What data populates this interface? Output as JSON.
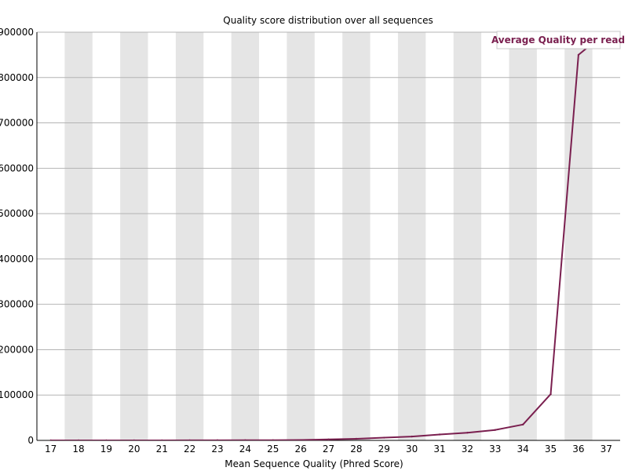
{
  "chart_data": {
    "type": "line",
    "title": "Quality score distribution over all sequences",
    "xlabel": "Mean Sequence Quality (Phred Score)",
    "ylabel": "",
    "x": [
      17,
      18,
      19,
      20,
      21,
      22,
      23,
      24,
      25,
      26,
      27,
      28,
      29,
      30,
      31,
      32,
      33,
      34,
      35,
      36,
      37
    ],
    "xlim": [
      17,
      37
    ],
    "ylim": [
      0,
      900000
    ],
    "yticks": [
      0,
      100000,
      200000,
      300000,
      400000,
      500000,
      600000,
      700000,
      800000,
      900000
    ],
    "grid": true,
    "band_color": "#e5e5e5",
    "legend_position": "top-right",
    "series": [
      {
        "name": "Average Quality per read",
        "color": "#7a1f4f",
        "values": [
          5,
          10,
          20,
          50,
          60,
          100,
          200,
          300,
          400,
          800,
          2000,
          3500,
          6000,
          8500,
          13000,
          17000,
          23000,
          35000,
          102000,
          850000,
          900000
        ]
      }
    ]
  }
}
